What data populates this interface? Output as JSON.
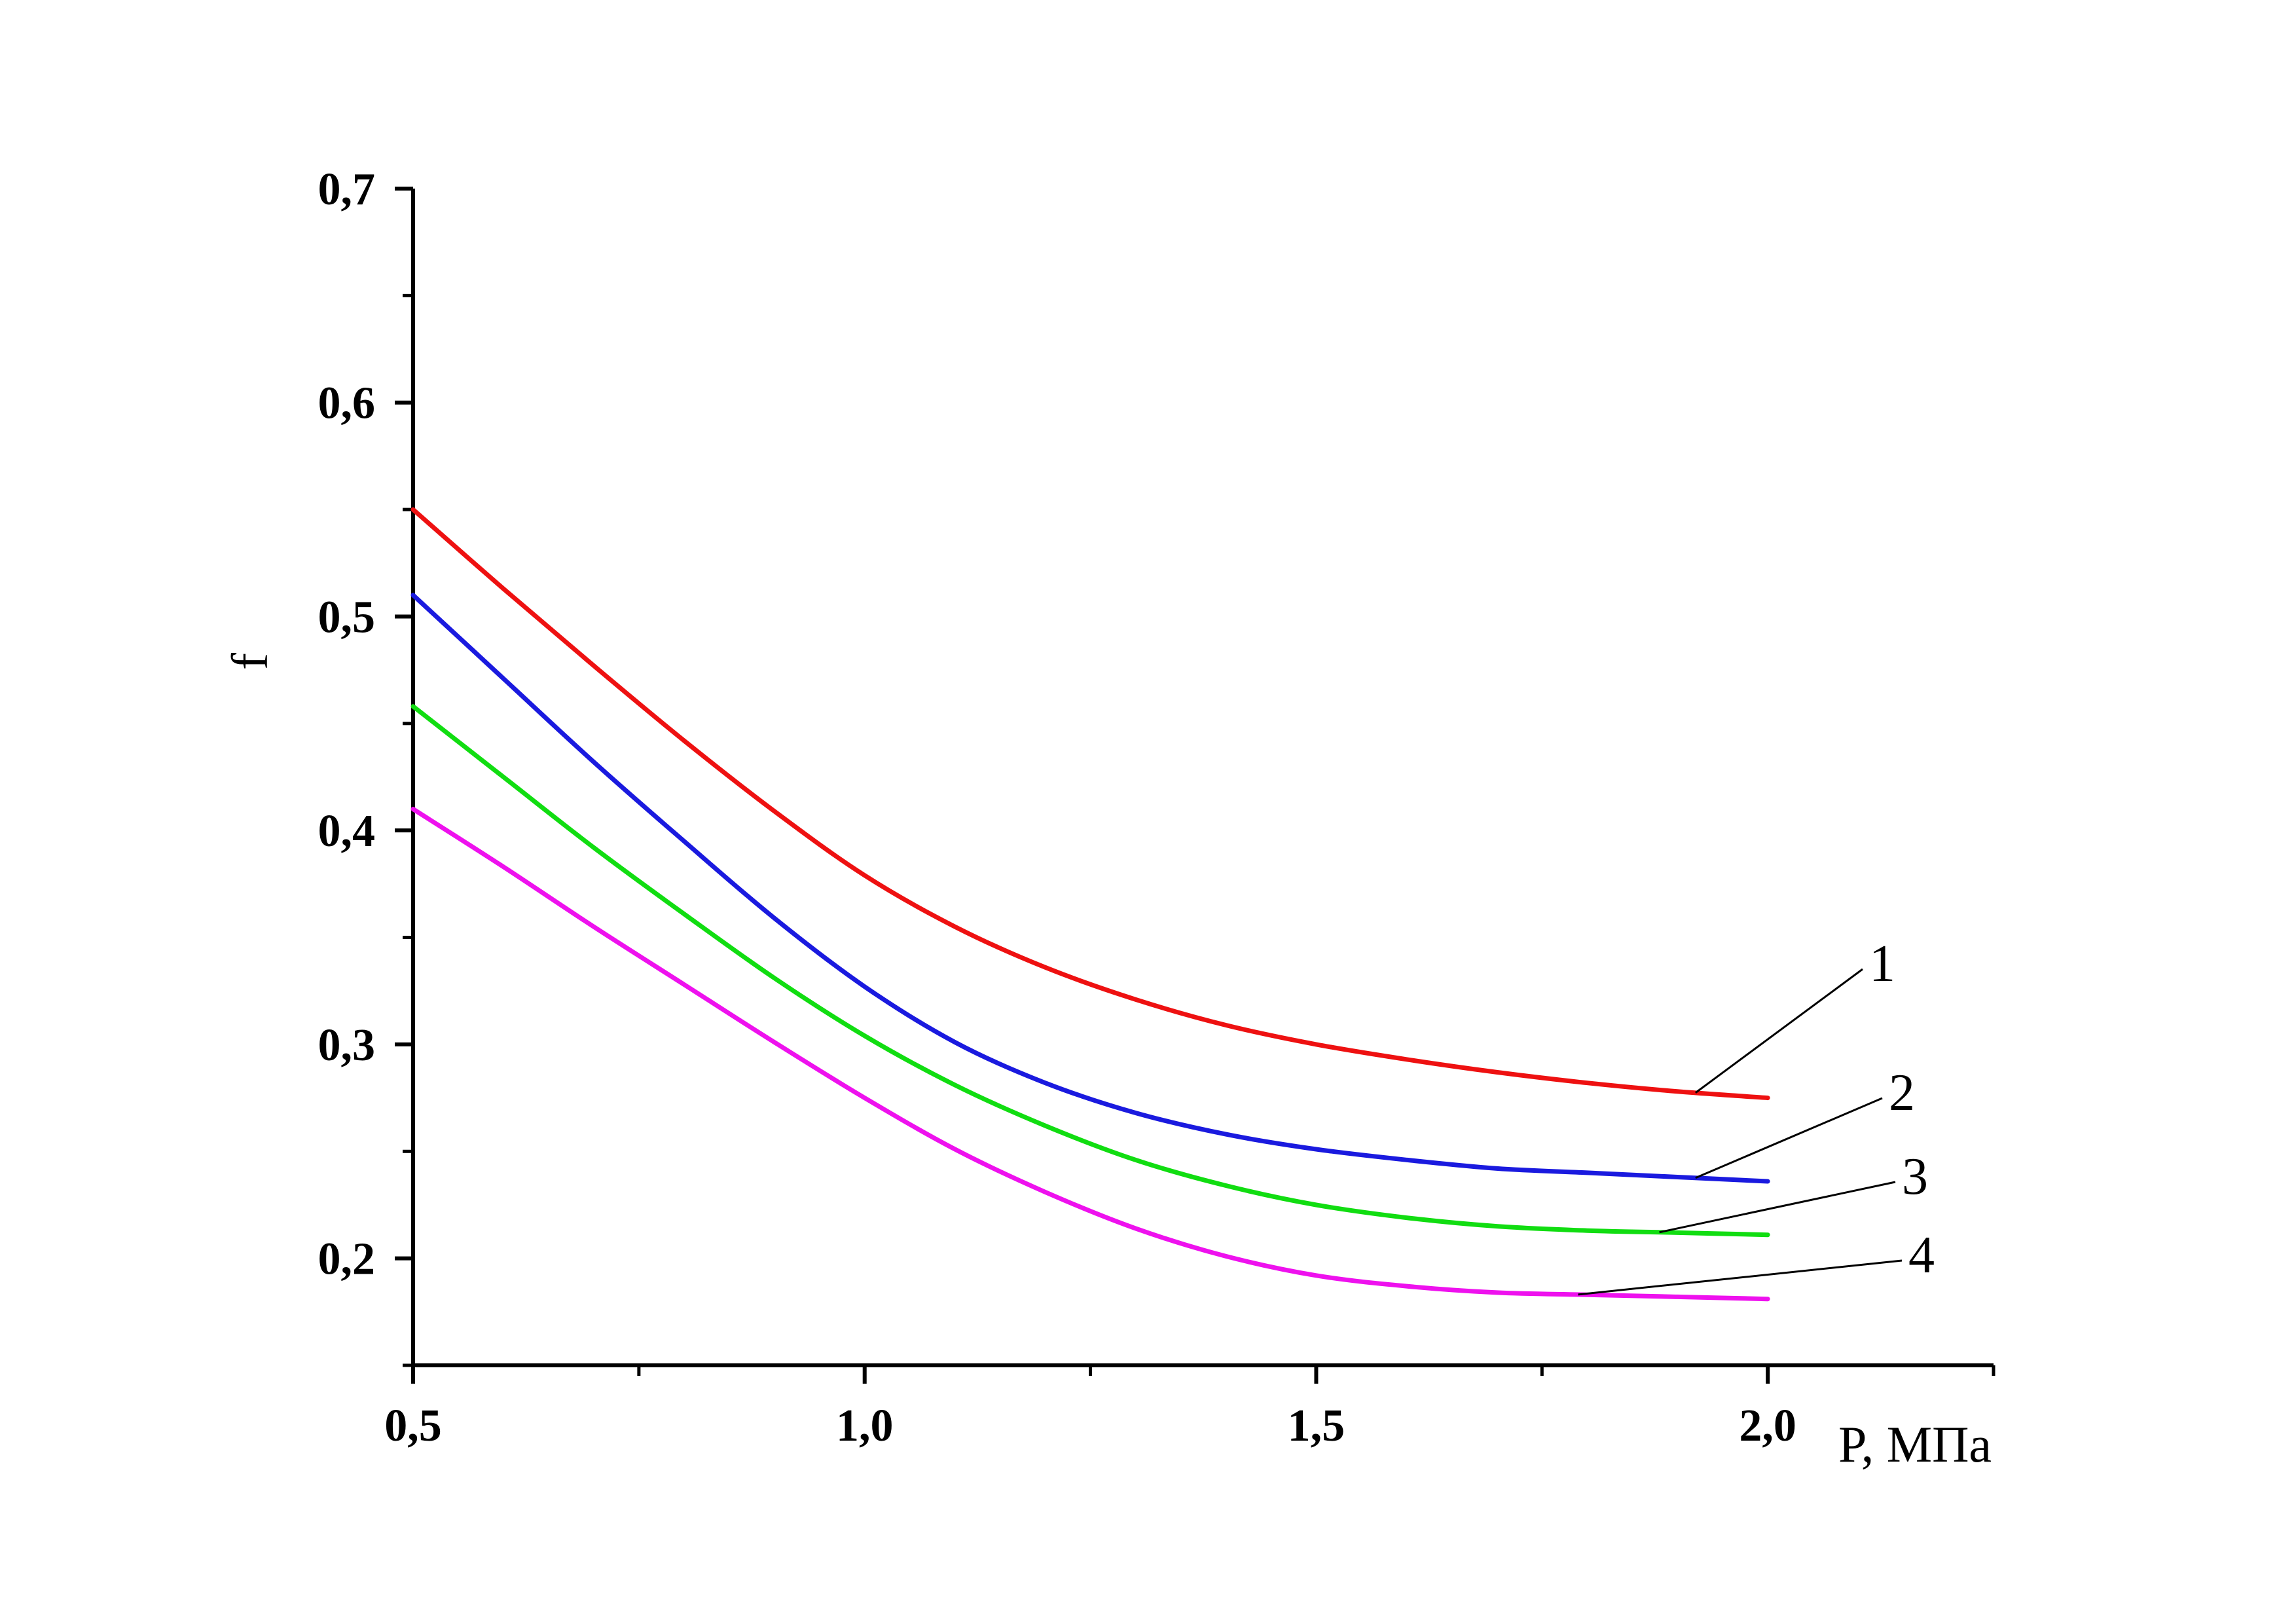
{
  "chart_data": {
    "type": "line",
    "title": "",
    "xlabel": "P, МПа",
    "ylabel": "f",
    "xlim": [
      0.5,
      2.25
    ],
    "ylim": [
      0.15,
      0.7
    ],
    "x_major_ticks": [
      0.5,
      1.0,
      1.5,
      2.0
    ],
    "x_tick_labels": [
      "0,5",
      "1,0",
      "1,5",
      "2,0"
    ],
    "x_minor_ticks": [
      0.75,
      1.25,
      1.75,
      2.25
    ],
    "y_major_ticks": [
      0.2,
      0.3,
      0.4,
      0.5,
      0.6,
      0.7
    ],
    "y_tick_labels": [
      "0,2",
      "0,3",
      "0,4",
      "0,5",
      "0,6",
      "0,7"
    ],
    "y_minor_ticks": [
      0.15,
      0.25,
      0.35,
      0.45,
      0.55,
      0.65
    ],
    "grid": false,
    "legend": "none",
    "x": [
      0.5,
      0.6,
      0.7,
      0.8,
      0.9,
      1.0,
      1.1,
      1.2,
      1.3,
      1.4,
      1.5,
      1.6,
      1.7,
      1.8,
      1.9,
      2.0
    ],
    "series": [
      {
        "label": "1",
        "color": "#ee1111",
        "values": [
          0.55,
          0.513,
          0.477,
          0.442,
          0.409,
          0.379,
          0.355,
          0.336,
          0.321,
          0.309,
          0.3,
          0.293,
          0.287,
          0.282,
          0.278,
          0.275
        ]
      },
      {
        "label": "2",
        "color": "#1a1adf",
        "values": [
          0.51,
          0.471,
          0.432,
          0.395,
          0.359,
          0.327,
          0.301,
          0.282,
          0.268,
          0.258,
          0.251,
          0.246,
          0.242,
          0.24,
          0.238,
          0.236
        ]
      },
      {
        "label": "3",
        "color": "#11dd11",
        "values": [
          0.458,
          0.425,
          0.392,
          0.361,
          0.331,
          0.304,
          0.281,
          0.262,
          0.246,
          0.234,
          0.225,
          0.219,
          0.215,
          0.213,
          0.212,
          0.211
        ]
      },
      {
        "label": "4",
        "color": "#ee11ee",
        "values": [
          0.41,
          0.383,
          0.355,
          0.328,
          0.301,
          0.275,
          0.251,
          0.231,
          0.214,
          0.201,
          0.192,
          0.187,
          0.184,
          0.183,
          0.182,
          0.181
        ]
      }
    ],
    "annotations": [
      {
        "text": "1",
        "series": 0,
        "at_x": 1.92
      },
      {
        "text": "2",
        "series": 1,
        "at_x": 1.92
      },
      {
        "text": "3",
        "series": 2,
        "at_x": 1.88
      },
      {
        "text": "4",
        "series": 3,
        "at_x": 1.79
      }
    ]
  }
}
